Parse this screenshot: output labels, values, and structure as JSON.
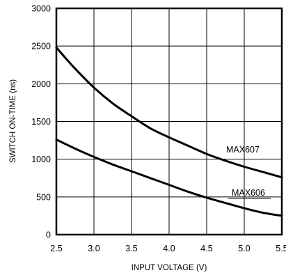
{
  "chart_data": {
    "type": "line",
    "title": "",
    "xlabel": "INPUT VOLTAGE (V)",
    "ylabel": "SWITCH ON-TIME (ns)",
    "xlim": [
      2.5,
      5.5
    ],
    "ylim": [
      0,
      3000
    ],
    "x_ticks": [
      "2.5",
      "3.0",
      "3.5",
      "4.0",
      "4.5",
      "5.0",
      "5.5"
    ],
    "y_ticks": [
      "0",
      "500",
      "1000",
      "1500",
      "2000",
      "2500",
      "3000"
    ],
    "grid": true,
    "series": [
      {
        "name": "MAX607",
        "x": [
          2.5,
          2.75,
          3.0,
          3.25,
          3.5,
          3.75,
          4.0,
          4.25,
          4.5,
          4.75,
          5.0,
          5.25,
          5.5
        ],
        "y": [
          2480,
          2200,
          1950,
          1740,
          1570,
          1410,
          1290,
          1180,
          1070,
          980,
          900,
          830,
          760
        ]
      },
      {
        "name": "MAX606",
        "x": [
          2.5,
          2.75,
          3.0,
          3.25,
          3.5,
          3.75,
          4.0,
          4.25,
          4.5,
          4.75,
          5.0,
          5.25,
          5.5
        ],
        "y": [
          1260,
          1140,
          1030,
          930,
          840,
          750,
          660,
          570,
          490,
          420,
          350,
          290,
          250
        ]
      }
    ]
  }
}
